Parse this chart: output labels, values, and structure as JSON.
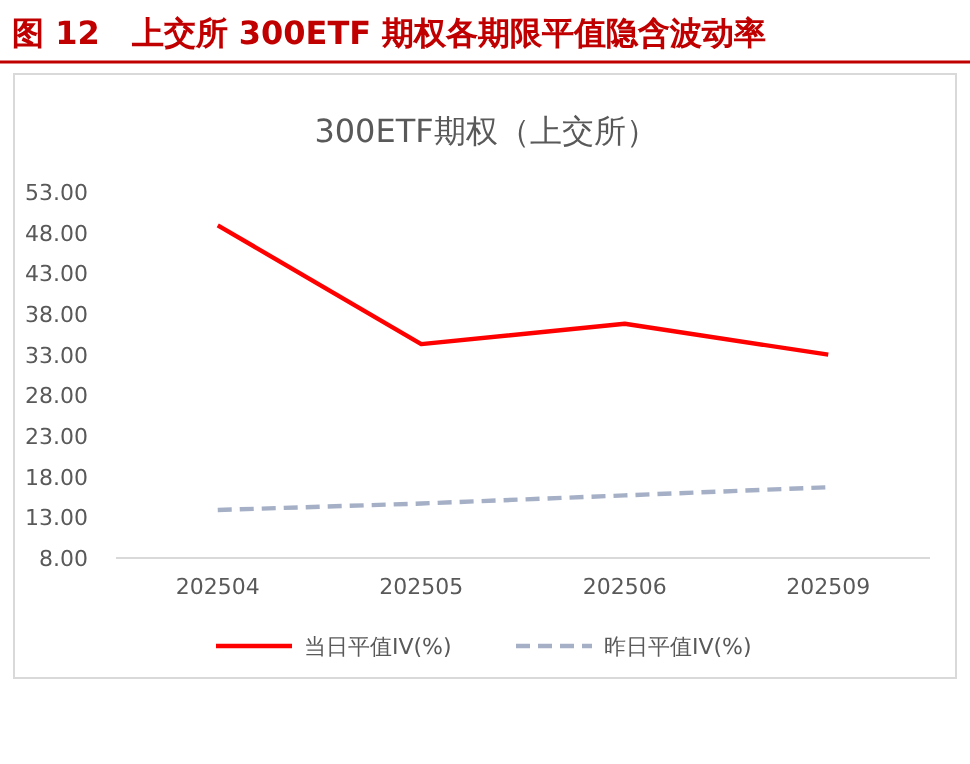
{
  "chart_data": {
    "type": "line",
    "title": "图 12　上交所 300ETF 期权各期限平值隐含波动率",
    "subtitle": "300ETF期权（上交所）",
    "categories": [
      "202504",
      "202505",
      "202506",
      "202509"
    ],
    "series": [
      {
        "name": "当日平值IV(%)",
        "color": "#ff0000",
        "line_style": "solid",
        "values": [
          48.9,
          34.3,
          36.8,
          33.0
        ]
      },
      {
        "name": "昨日平值IV(%)",
        "color": "#a5b0c6",
        "line_style": "dashed",
        "values": [
          13.9,
          14.7,
          15.7,
          16.7
        ]
      }
    ],
    "ylim": [
      8,
      53
    ],
    "yticks": [
      {
        "value": 8,
        "label": "8.00"
      },
      {
        "value": 13,
        "label": "13.00"
      },
      {
        "value": 18,
        "label": "18.00"
      },
      {
        "value": 23,
        "label": "23.00"
      },
      {
        "value": 28,
        "label": "28.00"
      },
      {
        "value": 33,
        "label": "33.00"
      },
      {
        "value": 38,
        "label": "38.00"
      },
      {
        "value": 43,
        "label": "43.00"
      },
      {
        "value": 48,
        "label": "48.00"
      },
      {
        "value": 53,
        "label": "53.00"
      }
    ],
    "grid": false,
    "legend": "bottom",
    "marker": "none"
  }
}
